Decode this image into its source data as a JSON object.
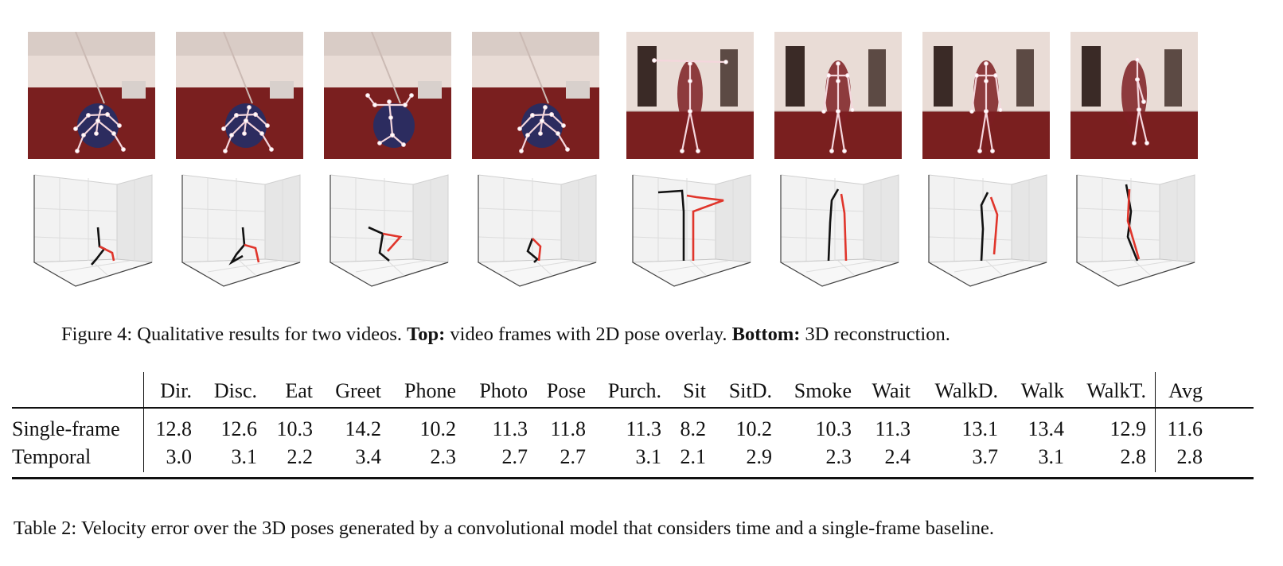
{
  "figure": {
    "caption_label": "Figure 4:",
    "caption_text_1": "Qualitative results for two videos.",
    "caption_bold_1": "Top:",
    "caption_text_2": "video frames with 2D pose overlay.",
    "caption_bold_2": "Bottom:",
    "caption_text_3": "3D reconstruction.",
    "frames": [
      {
        "scene": "seated-left",
        "pose": "sitting"
      },
      {
        "scene": "seated-left",
        "pose": "sitting"
      },
      {
        "scene": "seated-left",
        "pose": "sitting-arms-up"
      },
      {
        "scene": "seated-left",
        "pose": "sitting"
      },
      {
        "scene": "standing-room",
        "pose": "t-pose"
      },
      {
        "scene": "standing-room",
        "pose": "standing"
      },
      {
        "scene": "standing-room",
        "pose": "standing"
      },
      {
        "scene": "standing-room",
        "pose": "walking-side"
      }
    ],
    "colors": {
      "floor": "#7a1f1f",
      "wall": "#e9dcd6",
      "skeleton_left": "#e0352b",
      "skeleton_right": "#111111",
      "overlay": "#f4d6dc"
    }
  },
  "table": {
    "header_blank": "",
    "columns": [
      "Dir.",
      "Disc.",
      "Eat",
      "Greet",
      "Phone",
      "Photo",
      "Pose",
      "Purch.",
      "Sit",
      "SitD.",
      "Smoke",
      "Wait",
      "WalkD.",
      "Walk",
      "WalkT."
    ],
    "avg_label": "Avg",
    "rows": [
      {
        "label": "Single-frame",
        "values": [
          "12.8",
          "12.6",
          "10.3",
          "14.2",
          "10.2",
          "11.3",
          "11.8",
          "11.3",
          "8.2",
          "10.2",
          "10.3",
          "11.3",
          "13.1",
          "13.4",
          "12.9"
        ],
        "avg": "11.6"
      },
      {
        "label": "Temporal",
        "values": [
          "3.0",
          "3.1",
          "2.2",
          "3.4",
          "2.3",
          "2.7",
          "2.7",
          "3.1",
          "2.1",
          "2.9",
          "2.3",
          "2.4",
          "3.7",
          "3.1",
          "2.8"
        ],
        "avg": "2.8"
      }
    ]
  },
  "table_caption": {
    "label": "Table 2:",
    "text": "Velocity error over the 3D poses generated by a convolutional model that considers time and a single-frame baseline."
  }
}
